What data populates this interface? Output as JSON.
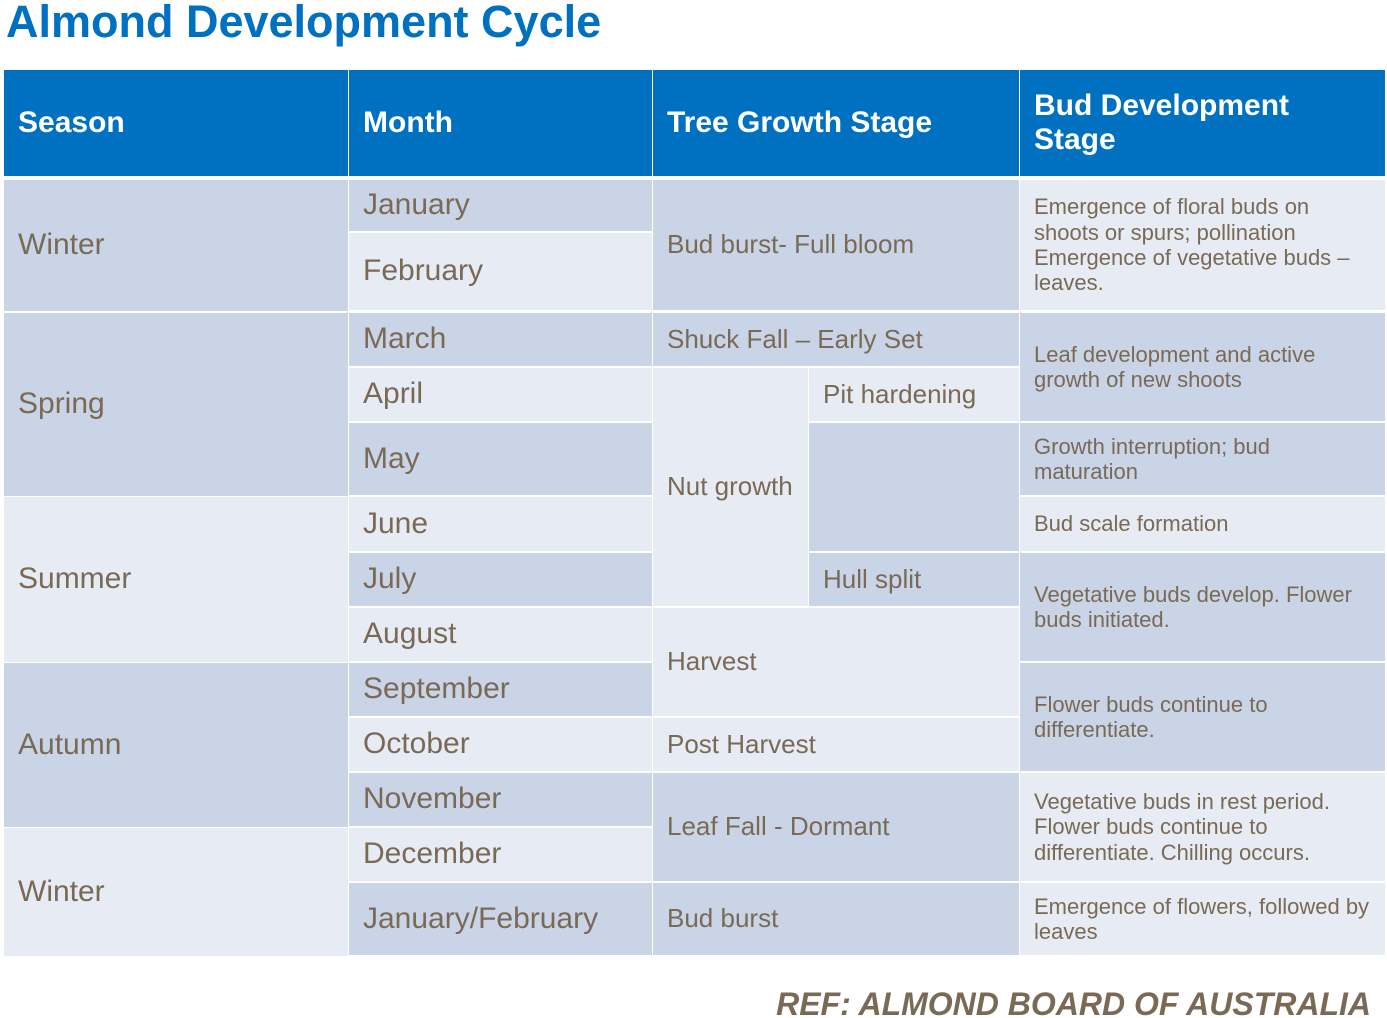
{
  "title": "Almond Development Cycle",
  "table": {
    "columns": [
      "Season",
      "Month",
      "Tree Growth Stage",
      "Bud Development Stage"
    ],
    "seasons": [
      "Winter",
      "Spring",
      "Summer",
      "Autumn",
      "Winter"
    ],
    "months": [
      "January",
      "February",
      "March",
      "April",
      "May",
      "June",
      "July",
      "August",
      "September",
      "October",
      "November",
      "December",
      "January/February"
    ],
    "tree_stages": [
      "Bud burst- Full bloom",
      "Shuck Fall – Early Set",
      "Nut growth",
      "Pit hardening",
      "Hull split",
      "Harvest",
      "Post Harvest",
      "Leaf Fall - Dormant",
      "Bud burst"
    ],
    "bud_stages": [
      "Emergence of floral buds on shoots or spurs; pollination Emergence of vegetative buds – leaves.",
      "Leaf development and active growth of new shoots",
      "Growth interruption; bud maturation",
      "Bud scale formation",
      "Vegetative buds develop. Flower buds initiated.",
      "Flower buds continue to differentiate.",
      "Vegetative buds in rest period. Flower buds continue to differentiate. Chilling occurs.",
      "Emergence of flowers, followed by leaves"
    ]
  },
  "footer": "REF: ALMOND BOARD OF AUSTRALIA"
}
